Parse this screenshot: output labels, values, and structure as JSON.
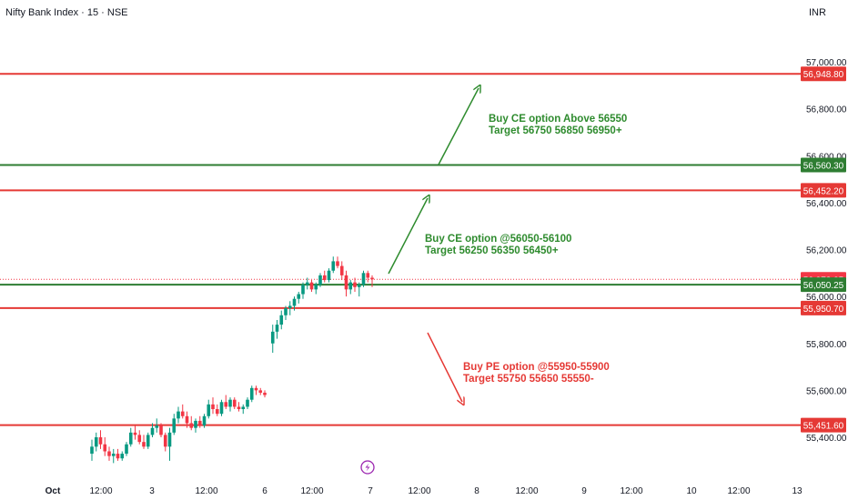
{
  "header": {
    "symbol": "Nifty Bank Index · 15 · NSE",
    "currency": "INR"
  },
  "colors": {
    "up": "#089981",
    "down": "#f23645",
    "support": "#2e7d32",
    "resistance": "#e53935",
    "annotation_green": "#2e8b2e",
    "annotation_red": "#e53935",
    "axis_text": "#131722",
    "event_icon": "#9c27b0"
  },
  "chart_data": {
    "type": "candlestick",
    "yaxis": {
      "ticks": [
        "57,000.00",
        "56,800.00",
        "56,600.00",
        "56,400.00",
        "56,200.00",
        "56,000.00",
        "55,800.00",
        "55,600.00",
        "55,400.00"
      ],
      "tick_values": [
        57000,
        56800,
        56600,
        56400,
        56200,
        56000,
        55800,
        55600,
        55400
      ],
      "range": [
        55300,
        57100
      ]
    },
    "xaxis": {
      "labels": [
        "Oct",
        "12:00",
        "3",
        "12:00",
        "6",
        "12:00",
        "7",
        "12:00",
        "8",
        "12:00",
        "9",
        "12:00",
        "10",
        "12:00",
        "13"
      ],
      "bold": [
        true,
        false,
        false,
        false,
        false,
        false,
        false,
        false,
        false,
        false,
        false,
        false,
        false,
        false,
        false
      ]
    },
    "current_price": {
      "label": "56,073.05",
      "value": 56073.05
    },
    "levels": [
      {
        "label": "56,948.80",
        "value": 56948.8,
        "kind": "resistance"
      },
      {
        "label": "56,560.30",
        "value": 56560.3,
        "kind": "support"
      },
      {
        "label": "56,452.20",
        "value": 56452.2,
        "kind": "resistance"
      },
      {
        "label": "56,050.25",
        "value": 56050.25,
        "kind": "support"
      },
      {
        "label": "55,950.70",
        "value": 55950.7,
        "kind": "resistance"
      },
      {
        "label": "55,451.60",
        "value": 55451.6,
        "kind": "resistance"
      }
    ],
    "annotations": [
      {
        "lines": [
          "Buy CE option Above 56550",
          "Target 56750 56850 56950+"
        ],
        "color": "green"
      },
      {
        "lines": [
          "Buy CE option @56050-56100",
          "Target 56250 56350 56450+"
        ],
        "color": "green"
      },
      {
        "lines": [
          "Buy PE option @55950-55900",
          "Target 55750 55650 55550-"
        ],
        "color": "red"
      }
    ],
    "candles": [
      [
        55330,
        55390,
        55300,
        55360
      ],
      [
        55360,
        55420,
        55340,
        55400
      ],
      [
        55400,
        55430,
        55350,
        55370
      ],
      [
        55370,
        55400,
        55320,
        55340
      ],
      [
        55340,
        55360,
        55300,
        55320
      ],
      [
        55320,
        55350,
        55290,
        55330
      ],
      [
        55330,
        55350,
        55300,
        55310
      ],
      [
        55310,
        55340,
        55300,
        55330
      ],
      [
        55330,
        55380,
        55320,
        55370
      ],
      [
        55370,
        55440,
        55360,
        55420
      ],
      [
        55420,
        55450,
        55390,
        55410
      ],
      [
        55410,
        55430,
        55370,
        55380
      ],
      [
        55380,
        55410,
        55350,
        55360
      ],
      [
        55360,
        55420,
        55350,
        55410
      ],
      [
        55410,
        55460,
        55400,
        55440
      ],
      [
        55440,
        55480,
        55420,
        55450
      ],
      [
        55450,
        55460,
        55400,
        55410
      ],
      [
        55410,
        55420,
        55340,
        55360
      ],
      [
        55360,
        55440,
        55300,
        55420
      ],
      [
        55420,
        55500,
        55410,
        55480
      ],
      [
        55480,
        55530,
        55460,
        55510
      ],
      [
        55510,
        55540,
        55480,
        55490
      ],
      [
        55490,
        55510,
        55440,
        55460
      ],
      [
        55460,
        55490,
        55430,
        55440
      ],
      [
        55440,
        55480,
        55420,
        55470
      ],
      [
        55470,
        55490,
        55440,
        55450
      ],
      [
        55450,
        55500,
        55440,
        55490
      ],
      [
        55490,
        55560,
        55480,
        55540
      ],
      [
        55540,
        55570,
        55500,
        55520
      ],
      [
        55520,
        55540,
        55490,
        55500
      ],
      [
        55500,
        55560,
        55490,
        55550
      ],
      [
        55550,
        55580,
        55520,
        55530
      ],
      [
        55530,
        55570,
        55510,
        55560
      ],
      [
        55560,
        55570,
        55520,
        55530
      ],
      [
        55530,
        55550,
        55510,
        55520
      ],
      [
        55520,
        55540,
        55500,
        55530
      ],
      [
        55530,
        55570,
        55520,
        55560
      ],
      [
        55560,
        55620,
        55550,
        55610
      ],
      [
        55610,
        55620,
        55580,
        55600
      ],
      [
        55600,
        55610,
        55580,
        55590
      ],
      [
        55590,
        55600,
        55570,
        55580
      ],
      [
        55800,
        55880,
        55760,
        55850
      ],
      [
        55850,
        55900,
        55820,
        55880
      ],
      [
        55880,
        55940,
        55860,
        55920
      ],
      [
        55920,
        55960,
        55900,
        55950
      ],
      [
        55950,
        55980,
        55920,
        55960
      ],
      [
        55960,
        56000,
        55940,
        55990
      ],
      [
        55990,
        56020,
        55970,
        56010
      ],
      [
        56010,
        56060,
        55990,
        56050
      ],
      [
        56050,
        56080,
        56030,
        56060
      ],
      [
        56060,
        56070,
        56020,
        56030
      ],
      [
        56030,
        56060,
        56010,
        56050
      ],
      [
        56050,
        56100,
        56040,
        56090
      ],
      [
        56090,
        56110,
        56060,
        56070
      ],
      [
        56070,
        56120,
        56060,
        56110
      ],
      [
        56110,
        56170,
        56100,
        56150
      ],
      [
        56150,
        56170,
        56120,
        56130
      ],
      [
        56130,
        56150,
        56070,
        56090
      ],
      [
        56090,
        56110,
        56000,
        56030
      ],
      [
        56030,
        56070,
        56010,
        56060
      ],
      [
        56060,
        56080,
        56020,
        56040
      ],
      [
        56040,
        56060,
        56000,
        56050
      ],
      [
        56050,
        56110,
        56040,
        56100
      ],
      [
        56100,
        56110,
        56060,
        56080
      ],
      [
        56080,
        56090,
        56040,
        56073
      ]
    ]
  }
}
